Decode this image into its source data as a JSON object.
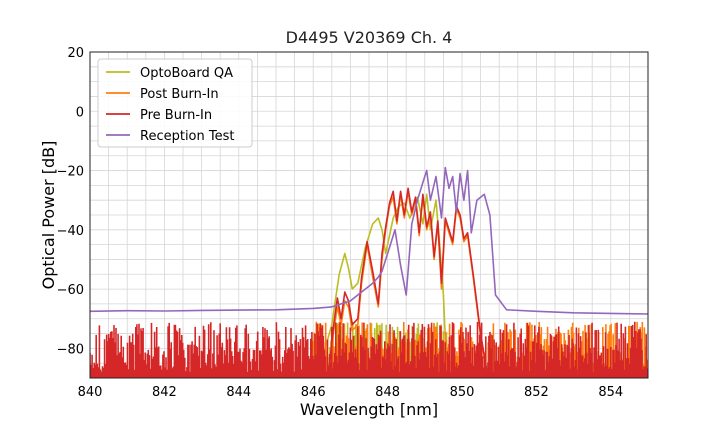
{
  "chart_data": {
    "type": "line",
    "title": "D4495 V20369 Ch. 4",
    "xlabel": "Wavelength [nm]",
    "ylabel": "Optical Power [dB]",
    "xlim": [
      840,
      855
    ],
    "ylim": [
      -90,
      20
    ],
    "xticks": [
      840,
      842,
      844,
      846,
      848,
      850,
      852,
      854
    ],
    "yticks": [
      20,
      0,
      -20,
      -40,
      -60,
      -80
    ],
    "xtick_labels": [
      "840",
      "842",
      "844",
      "846",
      "848",
      "850",
      "852",
      "854"
    ],
    "ytick_labels": [
      "20",
      "0",
      "−20",
      "−40",
      "−60",
      "−80"
    ],
    "grid": true,
    "legend_position": "top-left",
    "series": [
      {
        "name": "OptoBoard QA",
        "color": "#bcbd22",
        "noise_floor": [
          846.0,
          849.6
        ],
        "x": [
          840,
          846.1,
          846.5,
          846.7,
          846.85,
          846.95,
          847.05,
          847.2,
          847.4,
          847.6,
          847.75,
          847.85,
          847.95,
          848.05,
          848.15,
          848.3,
          848.45,
          848.6,
          848.8,
          848.95,
          849.05,
          849.15,
          849.3,
          849.4,
          849.5,
          849.6,
          855
        ],
        "y": [
          -90,
          -90,
          -72,
          -55,
          -48,
          -53,
          -60,
          -58,
          -46,
          -38,
          -36,
          -40,
          -48,
          -42,
          -36,
          -32,
          -31,
          -36,
          -29,
          -38,
          -28,
          -40,
          -30,
          -45,
          -62,
          -90,
          -90
        ]
      },
      {
        "name": "Post Burn-In",
        "color": "#ff7f0e",
        "noise_floor": [
          846.0,
          855.0
        ],
        "x": [
          840,
          846.4,
          846.55,
          846.65,
          846.75,
          846.85,
          846.95,
          847.05,
          847.2,
          847.3,
          847.45,
          847.6,
          847.75,
          847.85,
          847.95,
          848.05,
          848.15,
          848.25,
          848.35,
          848.45,
          848.55,
          848.65,
          848.75,
          848.85,
          848.95,
          849.05,
          849.15,
          849.25,
          849.35,
          849.45,
          849.55,
          849.65,
          849.75,
          849.85,
          849.95,
          850.05,
          850.15,
          850.3,
          850.5,
          850.7,
          855
        ],
        "y": [
          -90,
          -90,
          -74,
          -66,
          -72,
          -64,
          -66,
          -74,
          -72,
          -58,
          -45,
          -56,
          -66,
          -50,
          -40,
          -32,
          -29,
          -38,
          -28,
          -36,
          -27,
          -35,
          -30,
          -42,
          -29,
          -40,
          -35,
          -50,
          -38,
          -60,
          -37,
          -41,
          -45,
          -33,
          -36,
          -44,
          -42,
          -56,
          -76,
          -90,
          -90
        ]
      },
      {
        "name": "Pre Burn-In",
        "color": "#d62728",
        "noise_floor": [
          840.0,
          855.0
        ],
        "x": [
          840,
          846.4,
          846.55,
          846.65,
          846.75,
          846.85,
          846.95,
          847.05,
          847.2,
          847.3,
          847.45,
          847.6,
          847.75,
          847.85,
          847.95,
          848.05,
          848.15,
          848.25,
          848.35,
          848.45,
          848.55,
          848.65,
          848.75,
          848.85,
          848.95,
          849.05,
          849.15,
          849.25,
          849.35,
          849.45,
          849.55,
          849.65,
          849.75,
          849.85,
          849.95,
          850.05,
          850.15,
          850.3,
          850.5,
          850.7,
          855
        ],
        "y": [
          -90,
          -90,
          -72,
          -63,
          -70,
          -61,
          -64,
          -72,
          -70,
          -56,
          -44,
          -54,
          -65,
          -48,
          -39,
          -31,
          -27,
          -37,
          -27,
          -35,
          -26,
          -34,
          -29,
          -41,
          -28,
          -39,
          -34,
          -49,
          -37,
          -58,
          -36,
          -40,
          -44,
          -32,
          -35,
          -43,
          -41,
          -55,
          -75,
          -90,
          -90
        ]
      },
      {
        "name": "Reception Test",
        "color": "#9467bd",
        "noise_floor": [],
        "x": [
          840,
          841,
          842,
          843,
          844,
          845,
          846,
          846.5,
          847.0,
          847.2,
          847.4,
          847.6,
          847.75,
          847.85,
          848.0,
          848.1,
          848.2,
          848.35,
          848.5,
          848.65,
          848.8,
          848.95,
          849.05,
          849.15,
          849.3,
          849.45,
          849.55,
          849.65,
          849.75,
          849.85,
          849.95,
          850.05,
          850.15,
          850.25,
          850.4,
          850.6,
          850.75,
          850.9,
          851.2,
          852,
          853,
          854,
          855
        ],
        "y": [
          -67.5,
          -67.3,
          -67.4,
          -67.2,
          -67.1,
          -67.0,
          -66.5,
          -66.0,
          -64,
          -62,
          -60,
          -58,
          -56,
          -54,
          -48,
          -44,
          -40,
          -52,
          -62,
          -38,
          -30,
          -24,
          -20,
          -30,
          -22,
          -36,
          -19,
          -26,
          -22,
          -34,
          -21,
          -30,
          -20,
          -41,
          -30,
          -28,
          -35,
          -62,
          -67,
          -67.5,
          -68,
          -68.2,
          -68.4
        ]
      }
    ]
  }
}
